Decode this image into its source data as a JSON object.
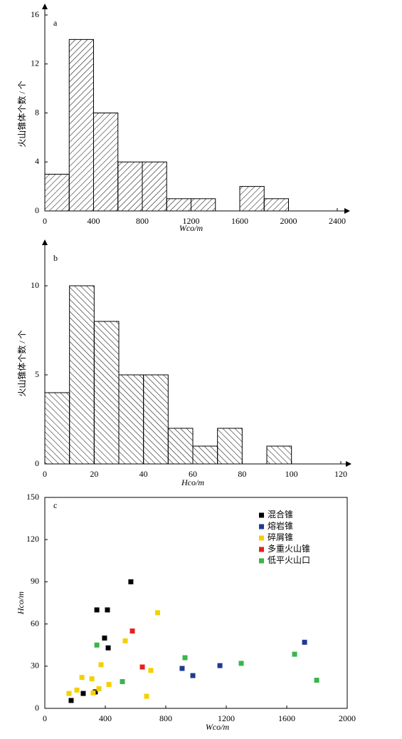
{
  "chart_data": [
    {
      "type": "histogram",
      "label": "a",
      "x_label": "Wco/m",
      "y_label": "火山锥体个数 / 个",
      "bins": [
        0,
        200,
        400,
        600,
        800,
        1000,
        1200,
        1400,
        1600,
        1800,
        2000
      ],
      "values": [
        3,
        14,
        8,
        4,
        4,
        1,
        1,
        0,
        2,
        1
      ],
      "xlim": [
        0,
        2400
      ],
      "xticks": [
        0,
        400,
        800,
        1200,
        1600,
        2000,
        2400
      ],
      "ylim": [
        0,
        16
      ],
      "yticks": [
        0,
        4,
        8,
        12,
        16
      ]
    },
    {
      "type": "histogram",
      "label": "b",
      "x_label": "Hco/m",
      "y_label": "火山锥体个数 / 个",
      "bins": [
        0,
        10,
        20,
        30,
        40,
        50,
        60,
        70,
        80,
        90,
        100
      ],
      "values": [
        4,
        10,
        8,
        5,
        5,
        2,
        1,
        2,
        0,
        1
      ],
      "xlim": [
        0,
        120
      ],
      "xticks": [
        0,
        20,
        40,
        60,
        80,
        100,
        120
      ],
      "ylim": [
        0,
        12
      ],
      "yticks": [
        0,
        5,
        10
      ]
    },
    {
      "type": "scatter",
      "label": "c",
      "x_label": "Wco/m",
      "y_label": "Hco/m",
      "xlim": [
        0,
        2000
      ],
      "xticks": [
        0,
        400,
        800,
        1200,
        1600,
        2000
      ],
      "ylim": [
        0,
        150
      ],
      "yticks": [
        0,
        30,
        60,
        90,
        120,
        150
      ],
      "series": [
        {
          "name": "混合锥",
          "color": "#000000",
          "x": [
            174,
            254,
            334,
            344,
            414,
            395,
            419,
            569
          ],
          "values": [
            5.6,
            10.6,
            11.7,
            70,
            70,
            50,
            43,
            90
          ]
        },
        {
          "name": "熔岩锥",
          "color": "#1f3a93",
          "x": [
            908,
            979,
            1158,
            1718
          ],
          "values": [
            28.4,
            23.3,
            30.4,
            47
          ]
        },
        {
          "name": "碎屑锥",
          "color": "#f5d000",
          "x": [
            160,
            212,
            245,
            311,
            320,
            358,
            372,
            424,
            532,
            673,
            701,
            746
          ],
          "values": [
            10.6,
            13,
            22,
            21,
            11,
            14,
            31,
            17,
            48,
            8.6,
            27,
            68
          ]
        },
        {
          "name": "多重火山锥",
          "color": "#e8201c",
          "x": [
            579,
            645
          ],
          "values": [
            55,
            29.4
          ]
        },
        {
          "name": "低平火山口",
          "color": "#3ab54a",
          "x": [
            344,
            513,
            927,
            1299,
            1652,
            1798
          ],
          "values": [
            45,
            19,
            36,
            32,
            38.5,
            20
          ]
        }
      ]
    }
  ]
}
